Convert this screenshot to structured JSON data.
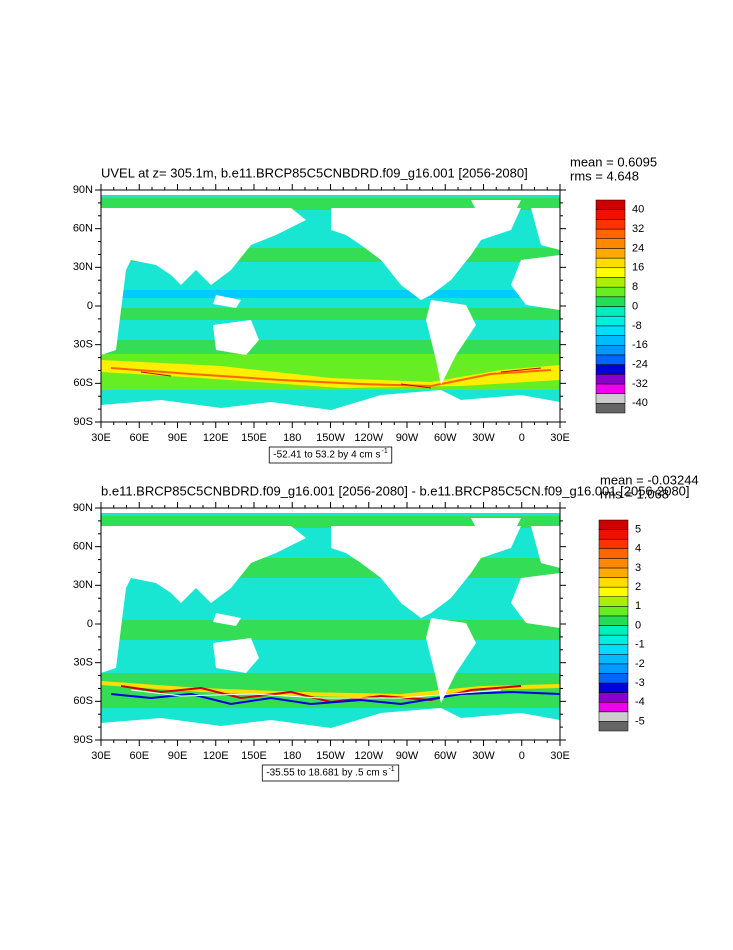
{
  "figures": [
    {
      "title": "UVEL at z= 305.1m, b.e11.BRCP85C5CNBDRD.f09_g16.001 [2056-2080]",
      "mean": "mean = 0.6095",
      "rms": "rms = 4.648",
      "lat_labels": [
        "90N",
        "60N",
        "30N",
        "0",
        "30S",
        "60S",
        "90S"
      ],
      "lon_labels": [
        "30E",
        "60E",
        "90E",
        "120E",
        "150E",
        "180",
        "150W",
        "120W",
        "90W",
        "60W",
        "30W",
        "0",
        "30E"
      ],
      "colorbar": {
        "labels": [
          40,
          32,
          24,
          16,
          8,
          0,
          -8,
          -16,
          -24,
          -32,
          -40
        ],
        "colors": [
          "#666666",
          "#cccccc",
          "#ee00ee",
          "#8800cc",
          "#0000dd",
          "#0066ff",
          "#0099ff",
          "#00bbff",
          "#00ddff",
          "#00eedd",
          "#00eebb",
          "#22dd55",
          "#66ee22",
          "#aaee00",
          "#ffff00",
          "#ffdd00",
          "#ffaa00",
          "#ff8800",
          "#ff6600",
          "#ff3300",
          "#ee1100",
          "#cc0000"
        ]
      },
      "range_text": "-52.41 to 53.2 by 4 cm s",
      "range_exponent": "-1"
    },
    {
      "title": "b.e11.BRCP85C5CNBDRD.f09_g16.001 [2056-2080] - b.e11.BRCP85C5CN.f09_g16.001 [2056-2080]",
      "mean": "mean = -0.03244",
      "rms": "rms = 1.068",
      "lat_labels": [
        "90N",
        "60N",
        "30N",
        "0",
        "30S",
        "60S",
        "90S"
      ],
      "lon_labels": [
        "30E",
        "60E",
        "90E",
        "120E",
        "150E",
        "180",
        "150W",
        "120W",
        "90W",
        "60W",
        "30W",
        "0",
        "30E"
      ],
      "colorbar": {
        "labels": [
          5,
          4,
          3,
          2,
          1,
          0,
          -1,
          -2,
          -3,
          -4,
          -5
        ],
        "colors": [
          "#666666",
          "#cccccc",
          "#ee00ee",
          "#8800cc",
          "#0000dd",
          "#0066ff",
          "#0099ff",
          "#00bbff",
          "#00ddff",
          "#00eedd",
          "#00eebb",
          "#22dd55",
          "#66ee22",
          "#aaee00",
          "#ffff00",
          "#ffdd00",
          "#ffaa00",
          "#ff8800",
          "#ff6600",
          "#ff3300",
          "#ee1100",
          "#cc0000"
        ]
      },
      "range_text": "-35.55 to 18.681 by .5 cm s",
      "range_exponent": "-1"
    }
  ]
}
